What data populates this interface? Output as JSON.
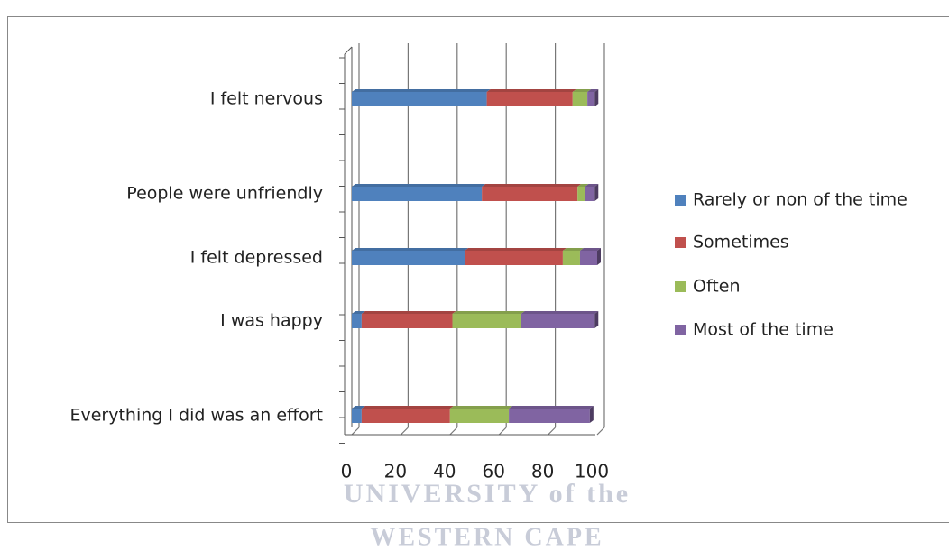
{
  "chart_data": {
    "type": "stacked-bar-horizontal",
    "categories": [
      "I felt nervous",
      "People were unfriendly",
      "I felt depressed",
      "I was happy",
      "Everything I did was an effort"
    ],
    "series": [
      {
        "name": "Rarely or non of the time",
        "color": "#4f81bd",
        "values": [
          55,
          53,
          46,
          4,
          4
        ]
      },
      {
        "name": "Sometimes",
        "color": "#c0504d",
        "values": [
          35,
          39,
          40,
          37,
          36
        ]
      },
      {
        "name": "Often",
        "color": "#9bbb59",
        "values": [
          6,
          3,
          7,
          28,
          24
        ]
      },
      {
        "name": "Most of the time",
        "color": "#8064a2",
        "values": [
          3,
          4,
          7,
          30,
          33
        ]
      }
    ],
    "xlim": [
      0,
      100
    ],
    "xticks": [
      0,
      20,
      40,
      60,
      80,
      100
    ],
    "grid": true,
    "legend": "right"
  },
  "watermark": [
    "UNIVERSITY of the",
    "WESTERN CAPE"
  ]
}
